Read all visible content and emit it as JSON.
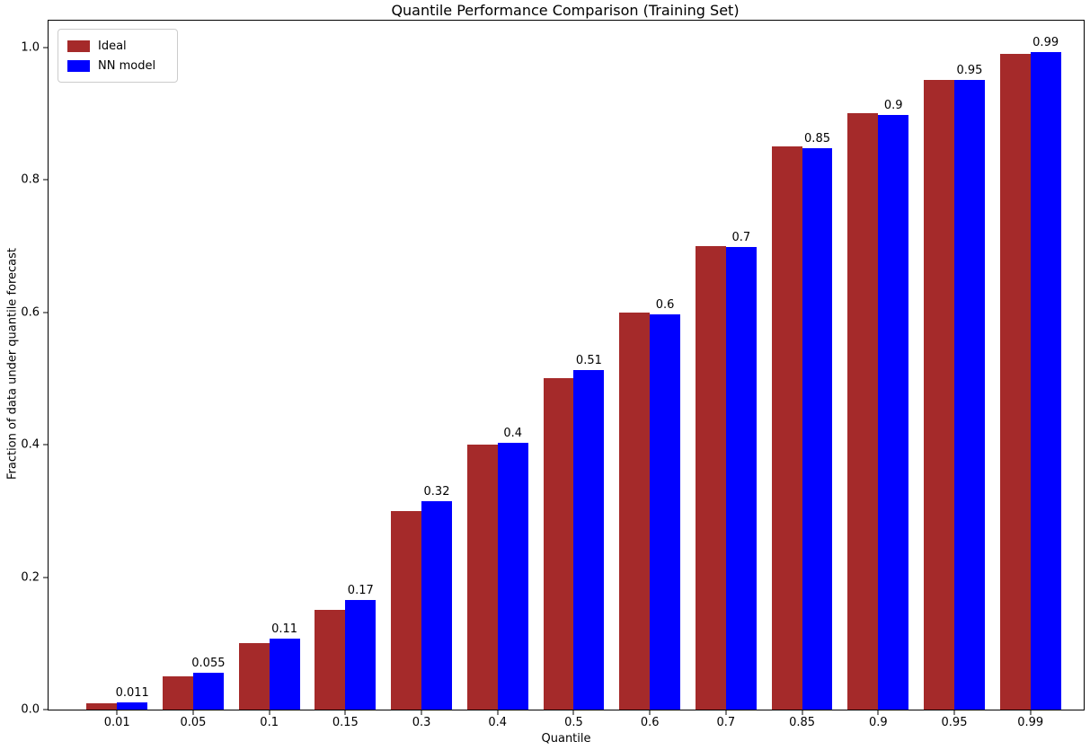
{
  "title": "Quantile Performance Comparison (Training Set)",
  "chart_data": {
    "type": "bar",
    "title": "Quantile Performance Comparison (Training Set)",
    "xlabel": "Quantile",
    "ylabel": "Fraction of data under quantile forecast",
    "categories": [
      "0.01",
      "0.05",
      "0.1",
      "0.15",
      "0.3",
      "0.4",
      "0.5",
      "0.6",
      "0.7",
      "0.85",
      "0.9",
      "0.95",
      "0.99"
    ],
    "series": [
      {
        "name": "Ideal",
        "color": "#a52a2a",
        "values": [
          0.01,
          0.05,
          0.1,
          0.15,
          0.3,
          0.4,
          0.5,
          0.6,
          0.7,
          0.85,
          0.9,
          0.95,
          0.99
        ]
      },
      {
        "name": "NN model",
        "color": "#0000ff",
        "values": [
          0.011,
          0.055,
          0.107,
          0.165,
          0.315,
          0.403,
          0.513,
          0.597,
          0.698,
          0.847,
          0.897,
          0.951,
          0.993
        ],
        "bar_labels": [
          "0.011",
          "0.055",
          "0.11",
          "0.17",
          "0.32",
          "0.4",
          "0.51",
          "0.6",
          "0.7",
          "0.85",
          "0.9",
          "0.95",
          "0.99"
        ]
      }
    ],
    "yticks": [
      "0.0",
      "0.2",
      "0.4",
      "0.6",
      "0.8",
      "1.0"
    ],
    "ylim": [
      0,
      1.04
    ],
    "grid": false,
    "legend_position": "upper left"
  }
}
